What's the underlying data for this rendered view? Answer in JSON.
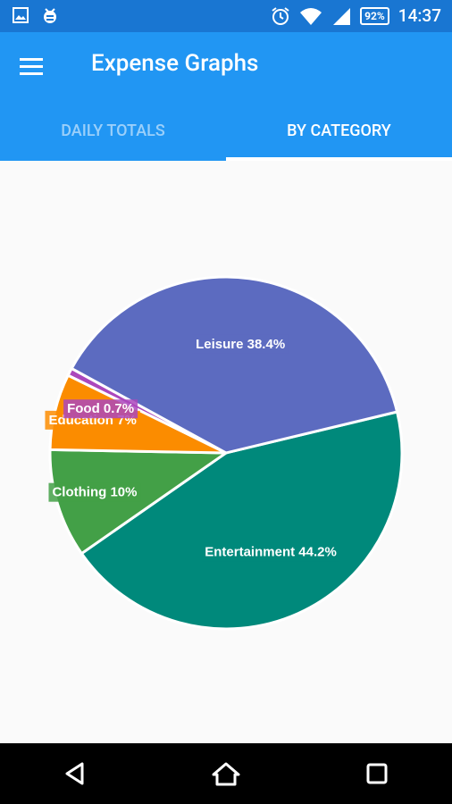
{
  "status_bar": {
    "left_icons": [
      "image-icon",
      "debug-icon"
    ],
    "right_icons": [
      "alarm-icon",
      "wifi-icon",
      "signal-icon"
    ],
    "battery": "92%",
    "time": "14:37"
  },
  "app_bar": {
    "title": "Expense Graphs",
    "menu_icon": "menu-icon"
  },
  "tabs": [
    {
      "label": "DAILY TOTALS",
      "active": false
    },
    {
      "label": "BY CATEGORY",
      "active": true
    }
  ],
  "chart_data": {
    "type": "pie",
    "slices": [
      {
        "label": "Entertainment",
        "value": 44.2,
        "display": "Entertainment 44.2%",
        "color": "#00897b"
      },
      {
        "label": "Clothing",
        "value": 10,
        "display": "Clothing 10%",
        "color": "#43a047"
      },
      {
        "label": "Education",
        "value": 7,
        "display": "Education 7%",
        "color": "#fb8c00"
      },
      {
        "label": "Food",
        "value": 0.7,
        "display": "Food 0.7%",
        "color": "#ab47bc"
      },
      {
        "label": "Leisure",
        "value": 38.4,
        "display": "Leisure 38.4%",
        "color": "#5c6bc0"
      }
    ]
  },
  "nav_bar": {
    "buttons": [
      "back-icon",
      "home-icon",
      "recents-icon"
    ]
  }
}
